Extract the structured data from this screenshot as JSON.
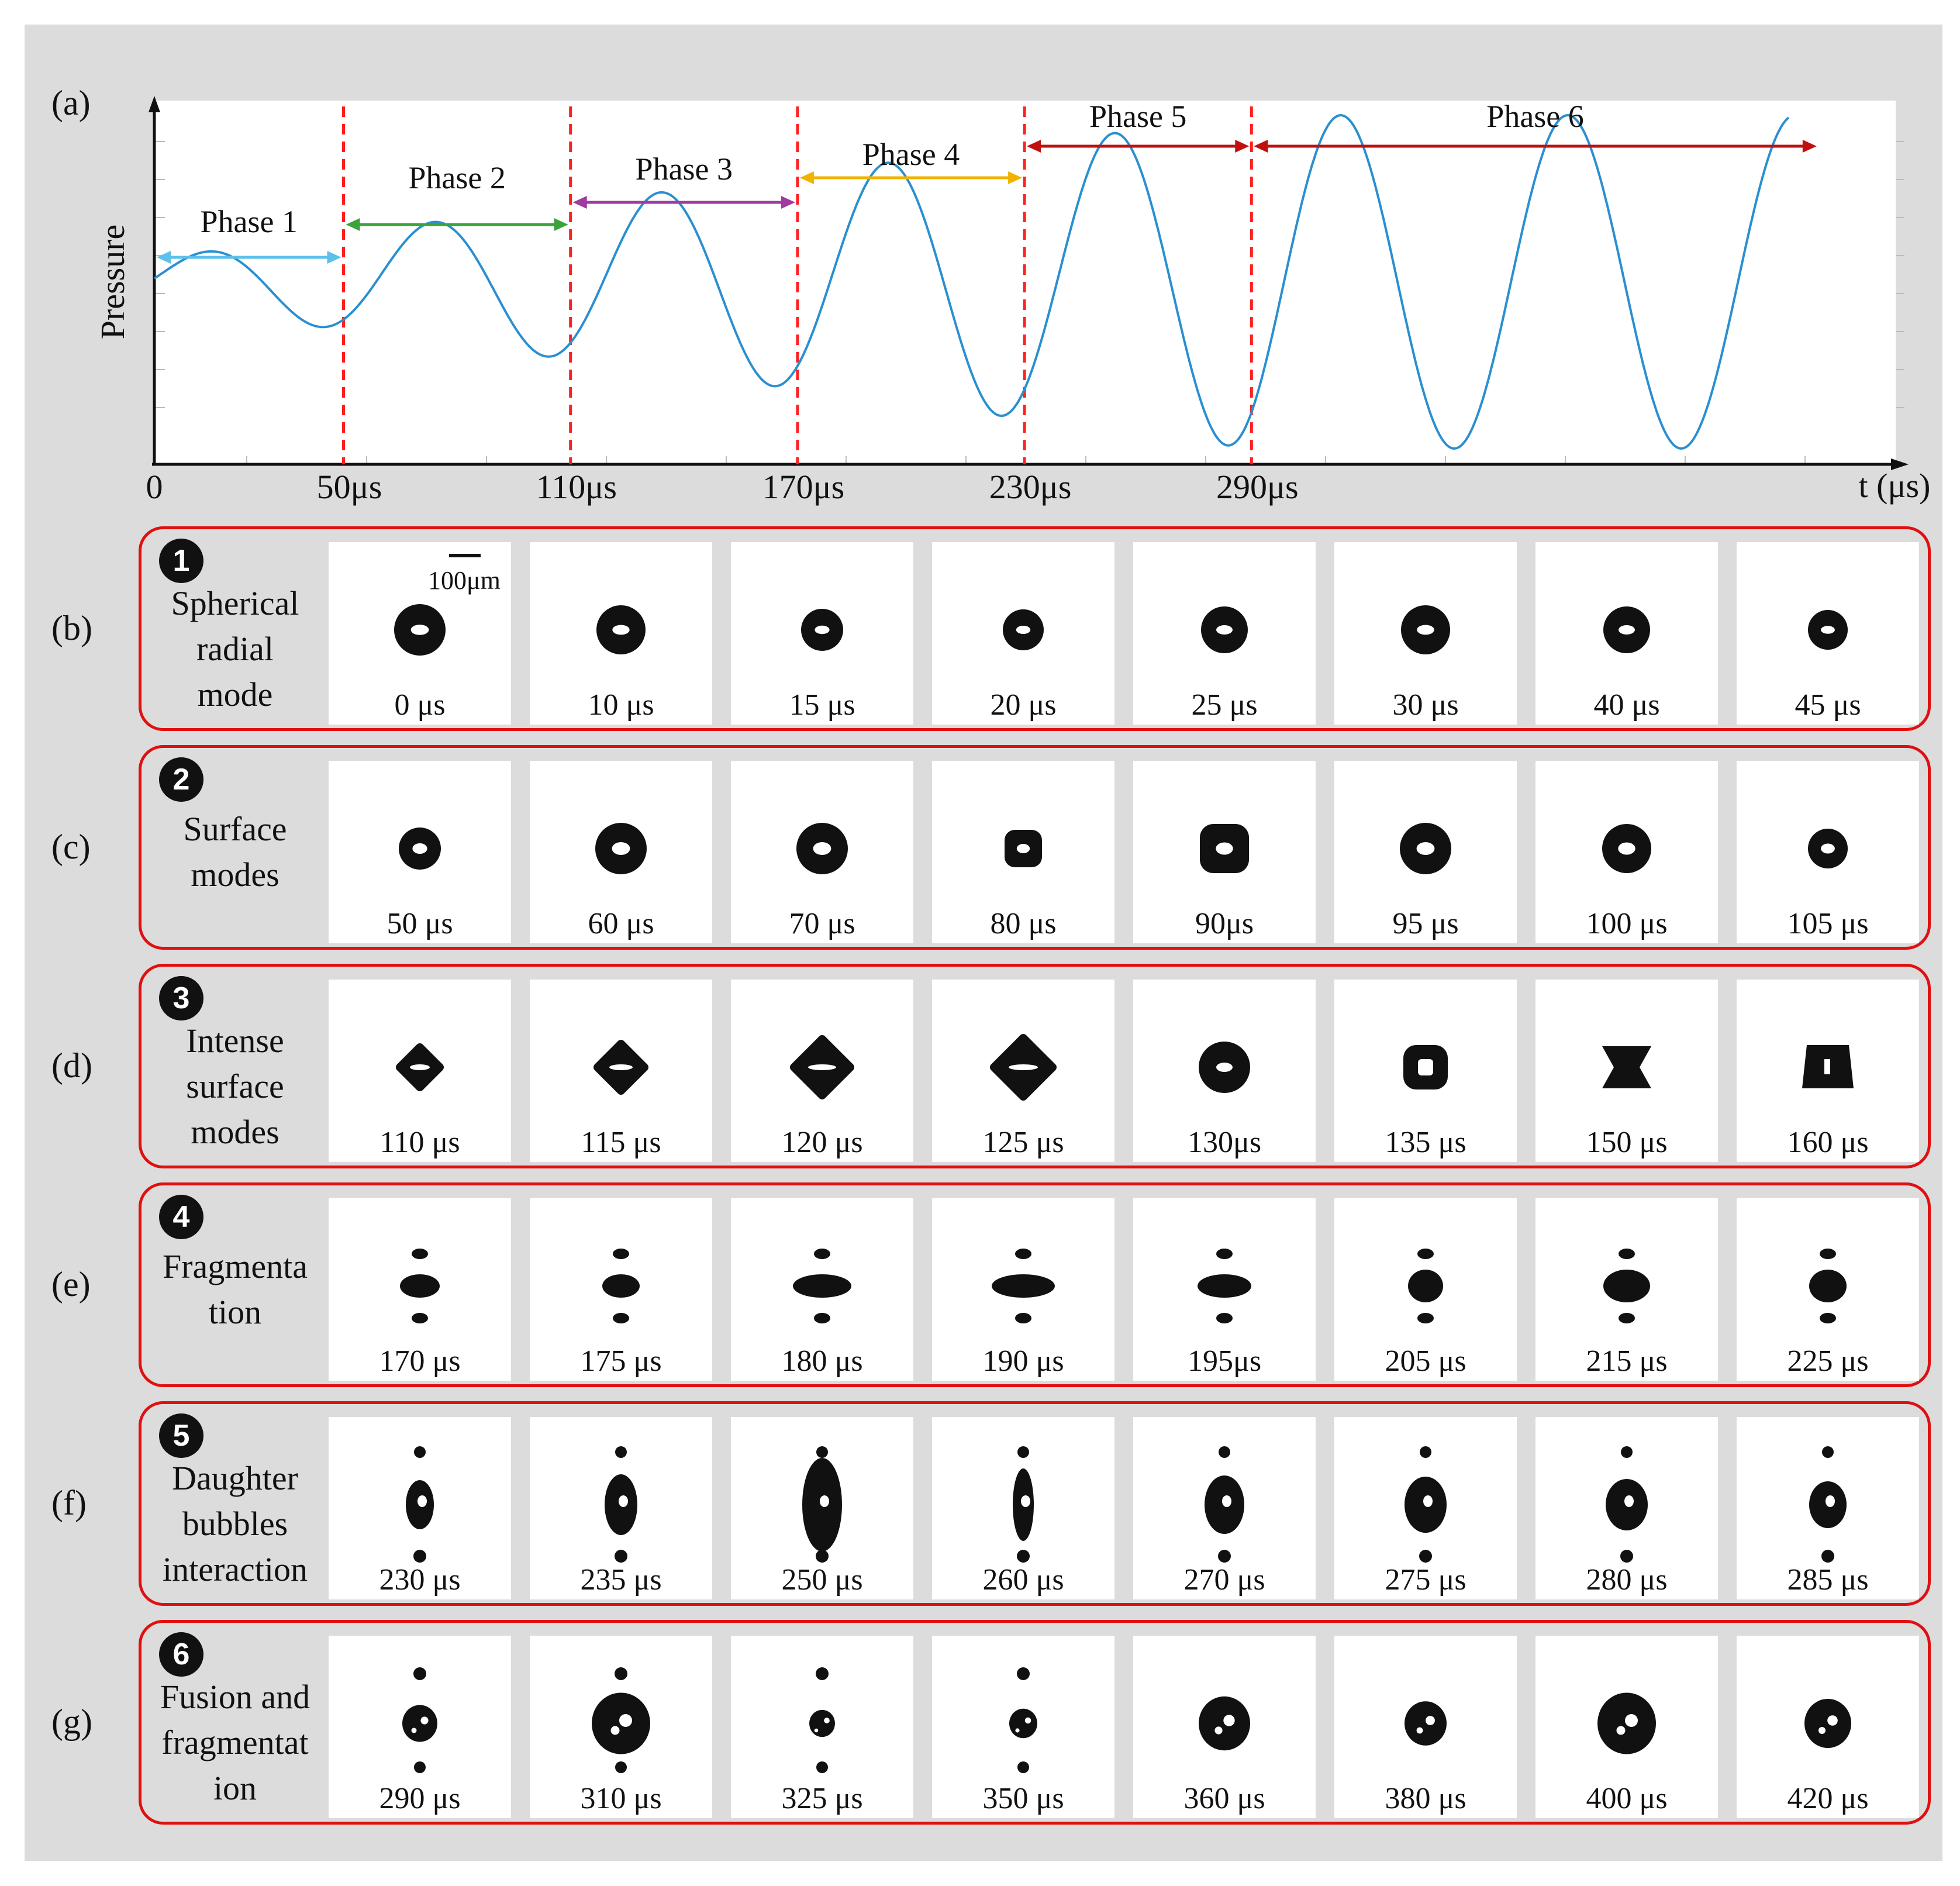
{
  "panel_a": {
    "label": "(a)",
    "chart_data": {
      "type": "line",
      "ylabel": "Pressure",
      "xlabel": "t (μs)",
      "x_ticks": [
        "0",
        "50μs",
        "110μs",
        "170μs",
        "230μs",
        "290μs"
      ],
      "phase_boundaries_us": [
        50,
        110,
        170,
        230,
        290
      ],
      "phases": [
        {
          "label": "Phase 1",
          "start_us": 0,
          "end_us": 50,
          "color": "#5bc0eb"
        },
        {
          "label": "Phase 2",
          "start_us": 50,
          "end_us": 110,
          "color": "#3aa43a"
        },
        {
          "label": "Phase 3",
          "start_us": 110,
          "end_us": 170,
          "color": "#a03aa0"
        },
        {
          "label": "Phase 4",
          "start_us": 170,
          "end_us": 230,
          "color": "#f0b400"
        },
        {
          "label": "Phase 5",
          "start_us": 230,
          "end_us": 290,
          "color": "#c01010"
        },
        {
          "label": "Phase 6",
          "start_us": 290,
          "end_us": 440,
          "color": "#c01010"
        }
      ],
      "series": [
        {
          "color": "#2a8fd0",
          "description_period_us": 60,
          "amplitude_growth": "increasing then saturated"
        }
      ],
      "grid": false,
      "boundary_line_color": "#ff2020"
    }
  },
  "rows": [
    {
      "panel": "(b)",
      "badge": "1",
      "lines": [
        "Spherical",
        "radial",
        "mode"
      ],
      "times": [
        "0 μs",
        "10 μs",
        "15 μs",
        "20 μs",
        "25 μs",
        "30 μs",
        "40 μs",
        "45 μs"
      ],
      "scale_label": "100μm"
    },
    {
      "panel": "(c)",
      "badge": "2",
      "lines": [
        "Surface",
        "modes"
      ],
      "times": [
        "50 μs",
        "60 μs",
        "70 μs",
        "80 μs",
        "90μs",
        "95 μs",
        "100 μs",
        "105 μs"
      ]
    },
    {
      "panel": "(d)",
      "badge": "3",
      "lines": [
        "Intense",
        "surface",
        "modes"
      ],
      "times": [
        "110 μs",
        "115 μs",
        "120 μs",
        "125 μs",
        "130μs",
        "135 μs",
        "150 μs",
        "160 μs"
      ]
    },
    {
      "panel": "(e)",
      "badge": "4",
      "lines": [
        "Fragmenta",
        "tion"
      ],
      "times": [
        "170 μs",
        "175 μs",
        "180 μs",
        "190 μs",
        "195μs",
        "205 μs",
        "215 μs",
        "225 μs"
      ]
    },
    {
      "panel": "(f)",
      "badge": "5",
      "lines": [
        "Daughter",
        "bubbles",
        "interaction"
      ],
      "times": [
        "230 μs",
        "235 μs",
        "250 μs",
        "260 μs",
        "270 μs",
        "275 μs",
        "280 μs",
        "285 μs"
      ]
    },
    {
      "panel": "(g)",
      "badge": "6",
      "lines": [
        "Fusion and",
        "fragmentat",
        "ion"
      ],
      "times": [
        "290 μs",
        "310 μs",
        "325 μs",
        "350 μs",
        "360 μs",
        "380 μs",
        "400 μs",
        "420 μs"
      ]
    }
  ]
}
